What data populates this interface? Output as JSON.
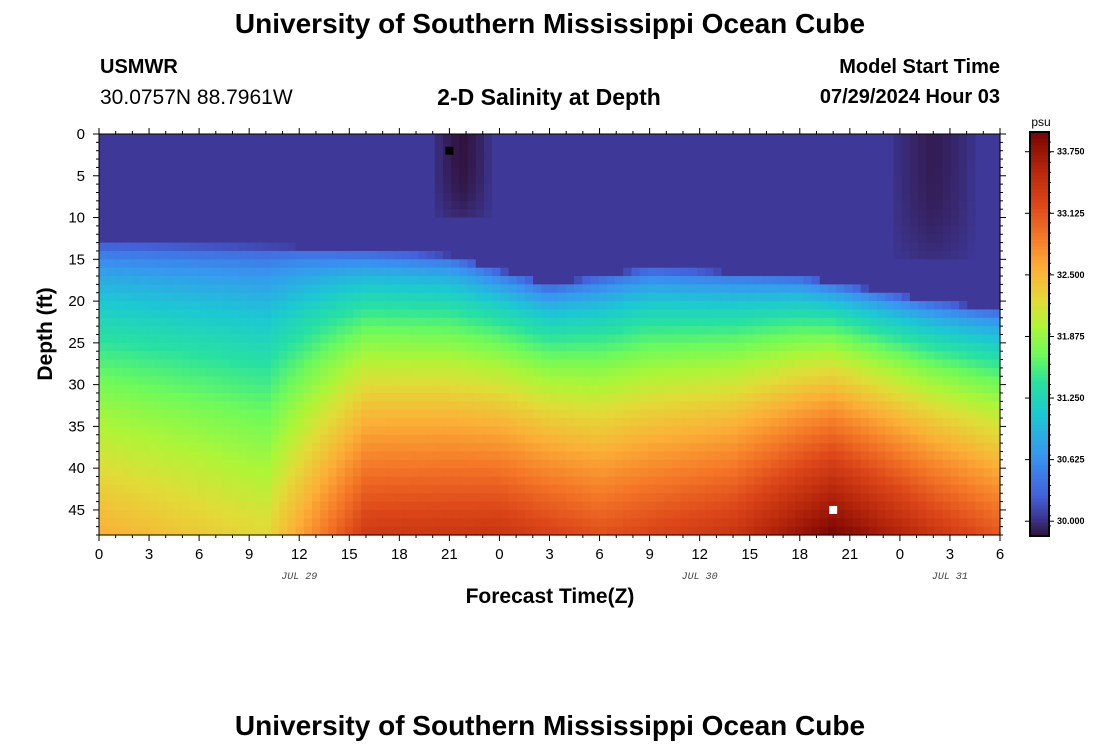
{
  "header": {
    "title": "University of Southern Mississippi Ocean Cube",
    "station": "USMWR",
    "coords": "30.0757N  88.7961W",
    "plot_title": "2-D Salinity at Depth",
    "start_label": "Model Start Time",
    "start_value": "07/29/2024 Hour 03"
  },
  "footer": {
    "title": "University of Southern Mississippi Ocean Cube"
  },
  "chart_data": {
    "type": "heatmap",
    "title": "2-D Salinity at Depth",
    "xlabel": "Forecast Time(Z)",
    "ylabel": "Depth (ft)",
    "x_tick_labels": [
      "0",
      "3",
      "6",
      "9",
      "12",
      "15",
      "18",
      "21",
      "0",
      "3",
      "6",
      "9",
      "12",
      "15",
      "18",
      "21",
      "0",
      "3",
      "6"
    ],
    "x_range_hours": [
      0,
      54
    ],
    "date_labels": [
      {
        "label": "JUL 29",
        "hour": 12
      },
      {
        "label": "JUL 30",
        "hour": 36
      },
      {
        "label": "JUL 31",
        "hour": 51
      }
    ],
    "y_tick_labels": [
      "0",
      "5",
      "10",
      "15",
      "20",
      "25",
      "30",
      "35",
      "40",
      "45"
    ],
    "y_range_ft": [
      0,
      48
    ],
    "colorbar": {
      "unit": "psu",
      "tick_labels": [
        "33.750",
        "33.125",
        "32.500",
        "31.875",
        "31.250",
        "30.625",
        "30.000"
      ],
      "range": [
        29.85,
        33.95
      ]
    },
    "surface_salinity_psu": 30.05,
    "halocline_depth_ft": [
      {
        "hour": 0,
        "depth": 17
      },
      {
        "hour": 12,
        "depth": 17.5
      },
      {
        "hour": 21,
        "depth": 18.5
      },
      {
        "hour": 27,
        "depth": 22
      },
      {
        "hour": 33,
        "depth": 20
      },
      {
        "hour": 42,
        "depth": 21
      },
      {
        "hour": 50,
        "depth": 24
      },
      {
        "hour": 54,
        "depth": 25
      }
    ],
    "bottom_salinity_psu": [
      {
        "hour": 0,
        "value": 32.55
      },
      {
        "hour": 10,
        "value": 32.25
      },
      {
        "hour": 16,
        "value": 33.35
      },
      {
        "hour": 24,
        "value": 33.4
      },
      {
        "hour": 30,
        "value": 33.15
      },
      {
        "hour": 38,
        "value": 33.4
      },
      {
        "hour": 44,
        "value": 33.95
      },
      {
        "hour": 50,
        "value": 33.4
      },
      {
        "hour": 54,
        "value": 33.1
      }
    ],
    "low_salinity_patches": [
      {
        "hour_start": 20,
        "hour_end": 23.5,
        "depth_start": 0,
        "depth_end": 10,
        "min_psu": 29.85
      },
      {
        "hour_start": 47.5,
        "hour_end": 52.5,
        "depth_start": 0,
        "depth_end": 14.5,
        "min_psu": 29.9
      }
    ],
    "markers": [
      {
        "type": "minimum",
        "hour": 21,
        "depth_ft": 2,
        "color": "#000000"
      },
      {
        "type": "maximum",
        "hour": 44,
        "depth_ft": 45,
        "color": "#ffffff"
      }
    ]
  }
}
